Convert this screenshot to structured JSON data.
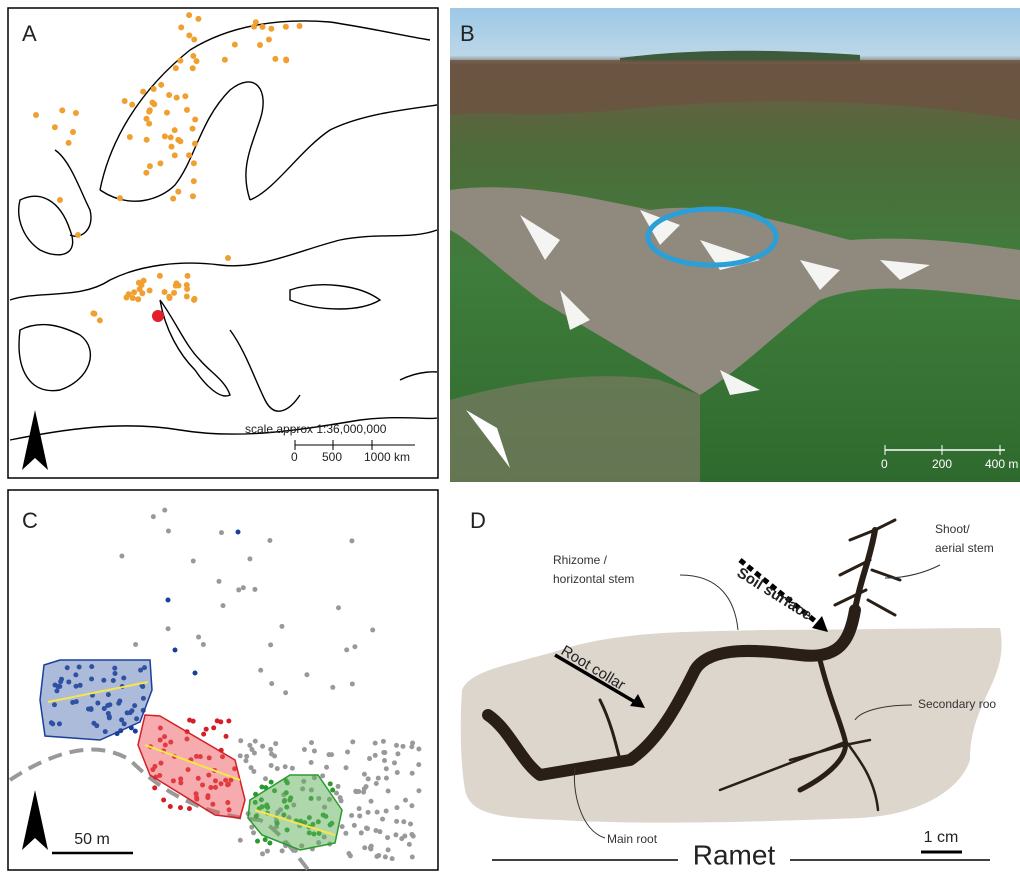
{
  "panels": {
    "a": {
      "label": "A",
      "scale_title": "scale approx 1:36,000,000",
      "scale_ticks": [
        "0",
        "500",
        "1000 km"
      ]
    },
    "b": {
      "label": "B",
      "scale_ticks": [
        "0",
        "200",
        "400 m"
      ]
    },
    "c": {
      "label": "C",
      "scale": "50 m"
    },
    "d": {
      "label": "D",
      "rhizome": [
        "Rhizome /",
        "horizontal stem"
      ],
      "soil_surface": "Soil surface",
      "shoot": [
        "Shoot/",
        "aerial stem"
      ],
      "root_collar": "Root collar",
      "secondary_root": "Secondary roo",
      "main_root": "Main root",
      "scale": "1 cm",
      "caption": "Ramet"
    }
  }
}
